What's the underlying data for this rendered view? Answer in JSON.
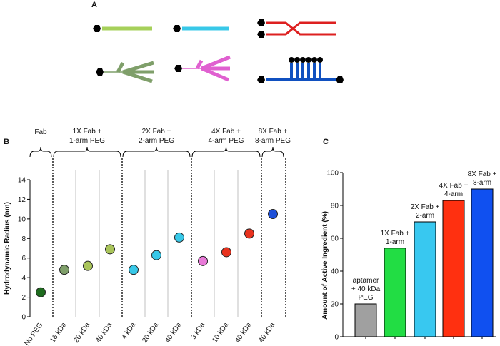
{
  "panel_a": {
    "label": "A"
  },
  "chart_data": [
    {
      "type": "scatter",
      "panel": "B",
      "categories": [
        "No PEG",
        "16 kDa",
        "20 kDa",
        "40 kDa",
        "4 kDa",
        "20 kDa",
        "40 kDa",
        "3 kDa",
        "10 kDa",
        "40 kDa",
        "40 kDa"
      ],
      "values": [
        2.5,
        4.8,
        5.2,
        6.9,
        4.8,
        6.3,
        8.1,
        5.7,
        6.6,
        8.5,
        10.5
      ],
      "colors": [
        "#1e6b1e",
        "#7f9f6a",
        "#a9c45a",
        "#a9c45a",
        "#38c8e8",
        "#38c8e8",
        "#38c8e8",
        "#e87ad8",
        "#e8321e",
        "#e8321e",
        "#1e50d8"
      ],
      "groups": [
        [
          "Fab"
        ],
        [
          "1X Fab +",
          "1-arm PEG"
        ],
        [
          "2X Fab +",
          "2-arm PEG"
        ],
        [
          "4X Fab +",
          "4-arm PEG"
        ],
        [
          "8X Fab +",
          "8-arm PEG"
        ]
      ],
      "ylabel": "Hydrodynamic Radius (nm)",
      "ylim": [
        0,
        14
      ],
      "yticks": [
        0,
        2,
        4,
        6,
        8,
        10,
        12,
        14
      ]
    },
    {
      "type": "bar",
      "panel": "C",
      "categories": [
        [
          "aptamer",
          "+ 40 kDa",
          "PEG"
        ],
        [
          "1X Fab +",
          "1-arm"
        ],
        [
          "2X Fab +",
          "2-arm"
        ],
        [
          "4X Fab +",
          "4-arm"
        ],
        [
          "8X Fab +",
          "8-arm"
        ]
      ],
      "values": [
        20,
        54,
        70,
        83,
        90
      ],
      "colors": [
        "#a0a0a0",
        "#22dd44",
        "#38c8f0",
        "#ff3010",
        "#1050f0"
      ],
      "ylabel": "Amount of Active Ingredient (%)",
      "ylim": [
        0,
        100
      ],
      "yticks": [
        0,
        20,
        40,
        60,
        80,
        100
      ]
    }
  ]
}
